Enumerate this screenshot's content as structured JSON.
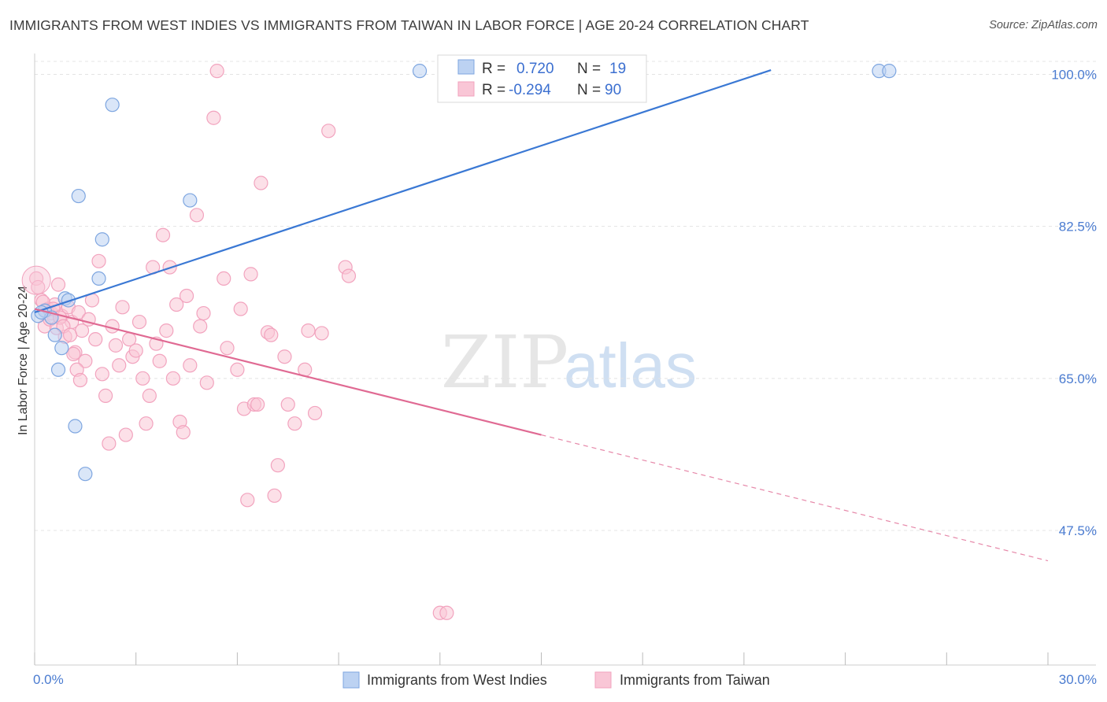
{
  "title": "IMMIGRANTS FROM WEST INDIES VS IMMIGRANTS FROM TAIWAN IN LABOR FORCE | AGE 20-24 CORRELATION CHART",
  "source": "Source: ZipAtlas.com",
  "watermark": {
    "zip": "ZIP",
    "atlas": "atlas"
  },
  "chart_data": {
    "type": "scatter",
    "title": "IMMIGRANTS FROM WEST INDIES VS IMMIGRANTS FROM TAIWAN IN LABOR FORCE | AGE 20-24 CORRELATION CHART",
    "xlabel": "",
    "ylabel": "In Labor Force | Age 20-24",
    "xlim": [
      0,
      30
    ],
    "ylim": [
      32,
      101.5
    ],
    "x_tick_labels": [
      "0.0%",
      "30.0%"
    ],
    "y_ticks": [
      47.5,
      65.0,
      82.5,
      100.0
    ],
    "y_tick_labels": [
      "47.5%",
      "65.0%",
      "82.5%",
      "100.0%"
    ],
    "grid": true,
    "legend_position": "top-center",
    "series": [
      {
        "name": "Immigrants from West Indies",
        "color": "#7ea6e0",
        "line_color": "#3a78d4",
        "R": "0.720",
        "N": "19",
        "trend": {
          "x": [
            0,
            21.8
          ],
          "y": [
            72.6,
            100.5
          ]
        },
        "points": [
          [
            0.1,
            72.2
          ],
          [
            0.3,
            72.8
          ],
          [
            0.5,
            72.0
          ],
          [
            0.6,
            70.0
          ],
          [
            0.7,
            66.0
          ],
          [
            0.8,
            68.5
          ],
          [
            0.9,
            74.2
          ],
          [
            1.0,
            74.0
          ],
          [
            1.3,
            86.0
          ],
          [
            1.2,
            59.5
          ],
          [
            1.5,
            54.0
          ],
          [
            1.9,
            76.5
          ],
          [
            2.0,
            81.0
          ],
          [
            2.3,
            96.5
          ],
          [
            4.6,
            85.5
          ],
          [
            11.4,
            100.4
          ],
          [
            25.0,
            100.4
          ],
          [
            25.3,
            100.4
          ],
          [
            0.2,
            72.6
          ]
        ]
      },
      {
        "name": "Immigrants from Taiwan",
        "color": "#f2a3be",
        "line_color": "#e06a93",
        "R": "-0.294",
        "N": "90",
        "trend": {
          "x": [
            0,
            15.0
          ],
          "y": [
            73.0,
            58.5
          ]
        },
        "trend_dashed": {
          "x": [
            15.0,
            30.0
          ],
          "y": [
            58.5,
            44.0
          ]
        },
        "points": [
          [
            0.05,
            76.5
          ],
          [
            0.1,
            75.5
          ],
          [
            0.2,
            74.0
          ],
          [
            0.3,
            71.0
          ],
          [
            0.4,
            73.0
          ],
          [
            0.5,
            72.5
          ],
          [
            0.6,
            73.5
          ],
          [
            0.7,
            75.8
          ],
          [
            0.8,
            72.2
          ],
          [
            0.9,
            69.8
          ],
          [
            1.0,
            73.2
          ],
          [
            1.1,
            71.5
          ],
          [
            1.2,
            68.0
          ],
          [
            1.3,
            72.6
          ],
          [
            1.4,
            70.5
          ],
          [
            1.5,
            67.0
          ],
          [
            1.6,
            71.8
          ],
          [
            1.7,
            74.0
          ],
          [
            1.8,
            69.5
          ],
          [
            1.9,
            78.5
          ],
          [
            2.0,
            65.5
          ],
          [
            2.1,
            63.0
          ],
          [
            2.2,
            57.5
          ],
          [
            2.3,
            71.0
          ],
          [
            2.4,
            68.8
          ],
          [
            2.5,
            66.5
          ],
          [
            2.6,
            73.2
          ],
          [
            2.7,
            58.5
          ],
          [
            2.8,
            69.5
          ],
          [
            2.9,
            67.5
          ],
          [
            3.0,
            68.2
          ],
          [
            3.1,
            71.5
          ],
          [
            3.2,
            65.0
          ],
          [
            3.3,
            59.8
          ],
          [
            3.4,
            63.0
          ],
          [
            3.5,
            77.8
          ],
          [
            3.6,
            69.0
          ],
          [
            3.7,
            67.0
          ],
          [
            3.8,
            81.5
          ],
          [
            3.9,
            70.5
          ],
          [
            4.0,
            77.8
          ],
          [
            4.1,
            65.0
          ],
          [
            4.2,
            73.5
          ],
          [
            4.3,
            60.0
          ],
          [
            4.4,
            58.8
          ],
          [
            4.5,
            74.5
          ],
          [
            4.6,
            66.5
          ],
          [
            4.8,
            83.8
          ],
          [
            4.9,
            71.0
          ],
          [
            5.0,
            72.5
          ],
          [
            5.1,
            64.5
          ],
          [
            5.3,
            95.0
          ],
          [
            5.4,
            100.4
          ],
          [
            5.6,
            76.5
          ],
          [
            5.7,
            68.5
          ],
          [
            6.0,
            66.0
          ],
          [
            6.2,
            61.5
          ],
          [
            6.1,
            73.0
          ],
          [
            6.4,
            77.0
          ],
          [
            6.5,
            62.0
          ],
          [
            6.3,
            51.0
          ],
          [
            6.6,
            62.0
          ],
          [
            6.7,
            87.5
          ],
          [
            6.9,
            70.3
          ],
          [
            7.0,
            70.0
          ],
          [
            7.1,
            51.5
          ],
          [
            7.2,
            55.0
          ],
          [
            7.4,
            67.5
          ],
          [
            7.5,
            62.0
          ],
          [
            7.7,
            59.8
          ],
          [
            8.0,
            66.0
          ],
          [
            8.1,
            70.5
          ],
          [
            8.3,
            61.0
          ],
          [
            8.5,
            70.2
          ],
          [
            8.7,
            93.5
          ],
          [
            9.2,
            77.8
          ],
          [
            9.3,
            76.8
          ],
          [
            12.0,
            38.0
          ],
          [
            12.2,
            38.0
          ],
          [
            0.25,
            73.8
          ],
          [
            0.35,
            72.8
          ],
          [
            0.45,
            71.8
          ],
          [
            0.55,
            73.0
          ],
          [
            0.65,
            70.8
          ],
          [
            0.75,
            72.0
          ],
          [
            0.85,
            71.0
          ],
          [
            1.05,
            70.0
          ],
          [
            1.15,
            67.8
          ],
          [
            1.25,
            66.0
          ],
          [
            1.35,
            64.8
          ]
        ]
      }
    ]
  },
  "legend": {
    "r_label": "R =",
    "n_label": "N =",
    "west_indies": {
      "r": "0.720",
      "n": "19"
    },
    "taiwan": {
      "r": "-0.294",
      "n": "90"
    }
  },
  "bottom_legend": {
    "west_indies": "Immigrants from West Indies",
    "taiwan": "Immigrants from Taiwan"
  }
}
